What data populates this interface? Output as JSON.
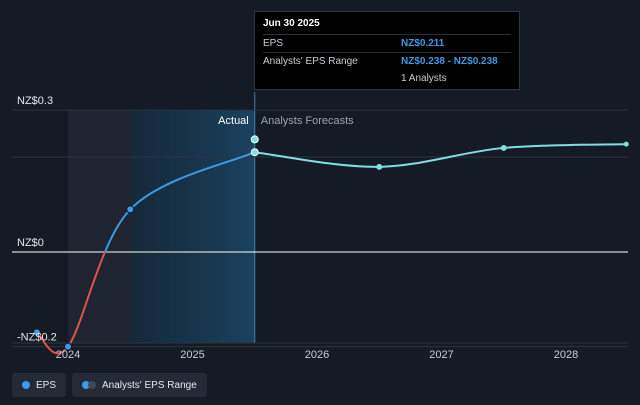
{
  "chart_data": {
    "type": "line",
    "y_ticks": [
      {
        "value": 0.3,
        "label": "NZ$0.3"
      },
      {
        "value": 0,
        "label": "NZ$0"
      },
      {
        "value": -0.2,
        "label": "-NZ$0.2"
      }
    ],
    "x_ticks": [
      {
        "value": 2024,
        "label": "2024"
      },
      {
        "value": 2025,
        "label": "2025"
      },
      {
        "value": 2026,
        "label": "2026"
      },
      {
        "value": 2027,
        "label": "2027"
      },
      {
        "value": 2028,
        "label": "2028"
      }
    ],
    "xlim": [
      2023.55,
      2028.5
    ],
    "ylim": [
      -0.2,
      0.32
    ],
    "actual_label": "Actual",
    "forecast_label": "Analysts Forecasts",
    "actual_boundary": 2025.5,
    "series": [
      {
        "name": "EPS",
        "points": [
          {
            "x": 2023.75,
            "y": -0.17
          },
          {
            "x": 2024.0,
            "y": -0.2
          },
          {
            "x": 2024.5,
            "y": 0.09
          },
          {
            "x": 2025.5,
            "y": 0.211
          }
        ]
      },
      {
        "name": "Analysts' EPS Range",
        "points": [
          {
            "x": 2025.5,
            "y": 0.211
          },
          {
            "x": 2026.5,
            "y": 0.18
          },
          {
            "x": 2027.5,
            "y": 0.22
          },
          {
            "x": 2028.5,
            "y": 0.228
          }
        ]
      }
    ],
    "range_marker": {
      "x": 2025.5,
      "y": 0.238
    },
    "colors": {
      "negative": "#e05252",
      "actual": "#3f9ae5",
      "forecast": "#7de0e3",
      "forecast_band": "#1a3a55",
      "past_band": "#1e2530"
    }
  },
  "tooltip": {
    "title": "Jun 30 2025",
    "rows": [
      {
        "key": "EPS",
        "value": "NZ$0.211"
      },
      {
        "key": "Analysts' EPS Range",
        "value": "NZ$0.238 - NZ$0.238"
      }
    ],
    "extra": "1 Analysts"
  },
  "legend": [
    {
      "label": "EPS",
      "icon": "dot-icon"
    },
    {
      "label": "Analysts' EPS Range",
      "icon": "range-icon"
    }
  ]
}
